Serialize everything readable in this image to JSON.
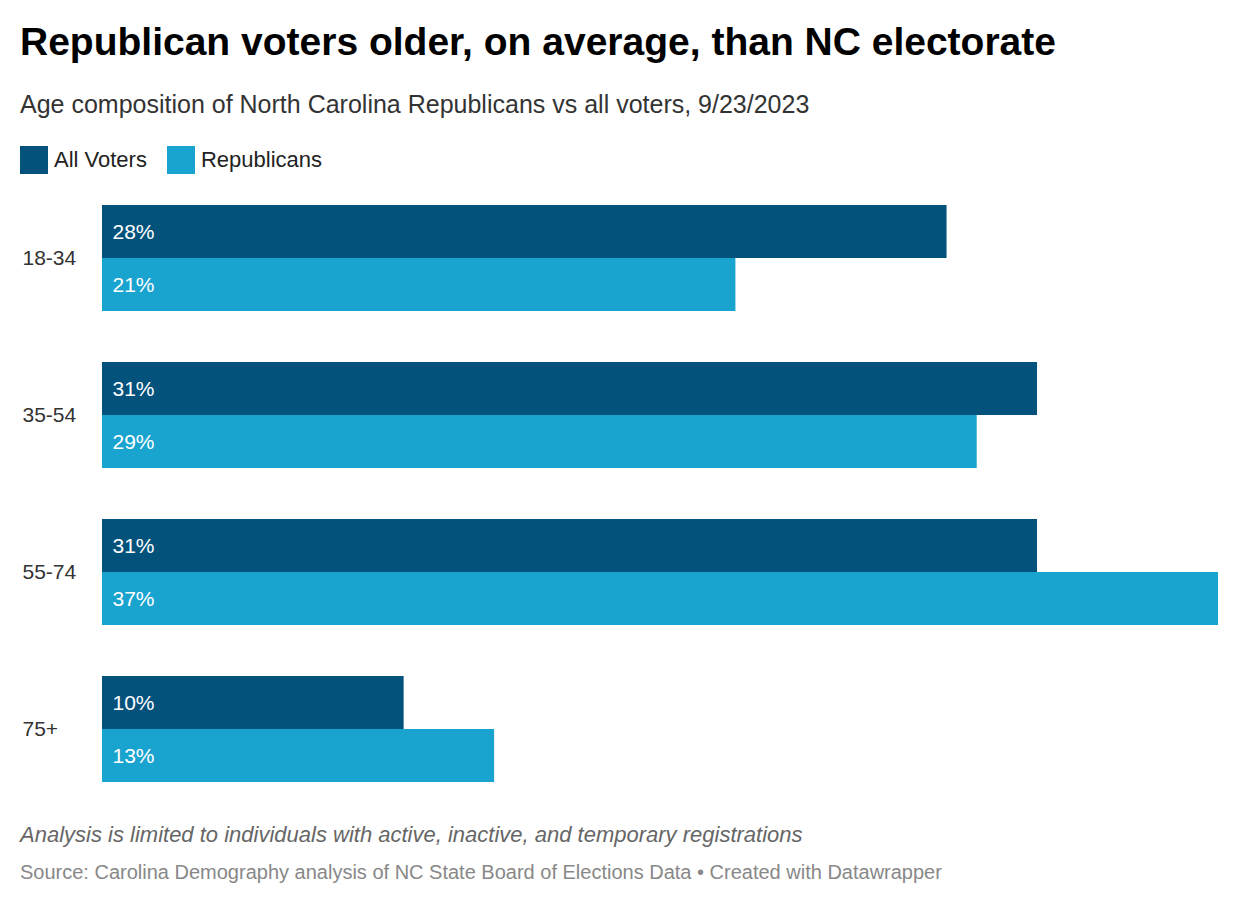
{
  "chart_data": {
    "type": "bar",
    "title": "Republican voters older, on average, than NC electorate",
    "subtitle": "Age composition of North Carolina Republicans vs all voters, 9/23/2023",
    "note": "Analysis is limited to individuals with active, inactive, and temporary registrations",
    "source": "Source: Carolina Demography analysis of NC State Board of Elections Data • Created with Datawrapper",
    "orientation": "horizontal",
    "categories": [
      "18-34",
      "35-54",
      "55-74",
      "75+"
    ],
    "series": [
      {
        "name": "All Voters",
        "color": "#03527c",
        "values": [
          28,
          31,
          31,
          10
        ],
        "value_labels": [
          "28%",
          "31%",
          "31%",
          "10%"
        ]
      },
      {
        "name": "Republicans",
        "color": "#19a3cf",
        "values": [
          21,
          29,
          37,
          13
        ],
        "value_labels": [
          "21%",
          "29%",
          "37%",
          "13%"
        ]
      }
    ],
    "xlim": [
      0,
      37
    ],
    "grid": false,
    "legend": "top-left",
    "data_labels": true,
    "tick_labels": "y"
  }
}
